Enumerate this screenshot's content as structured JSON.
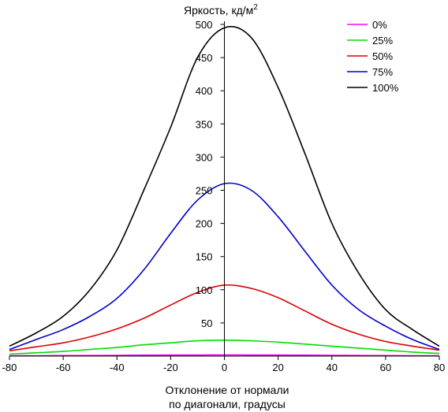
{
  "chart_data": {
    "type": "line",
    "title": "",
    "ylabel": "Яркость, кд/м",
    "ylabel_sup": "2",
    "xlabel_line1": "Отклонение от нормали",
    "xlabel_line2": "по диагонали, градусы",
    "xlim": [
      -80,
      80
    ],
    "ylim": [
      0,
      500
    ],
    "x_ticks": [
      -80,
      -60,
      -40,
      -20,
      0,
      20,
      40,
      60,
      80
    ],
    "y_ticks": [
      50,
      100,
      150,
      200,
      250,
      300,
      350,
      400,
      450,
      500
    ],
    "grid": false,
    "legend_position": "top-right",
    "x": [
      -80,
      -70,
      -60,
      -50,
      -40,
      -30,
      -20,
      -10,
      0,
      10,
      20,
      30,
      40,
      50,
      60,
      70,
      80
    ],
    "series": [
      {
        "name": "0%",
        "color": "#ff00ff",
        "values": [
          0.5,
          0.6,
          0.8,
          1,
          1.2,
          1.4,
          1.5,
          1.6,
          1.7,
          1.6,
          1.5,
          1.4,
          1.2,
          1,
          0.8,
          0.6,
          0.5
        ]
      },
      {
        "name": "25%",
        "color": "#00dd00",
        "values": [
          3,
          5,
          7,
          10,
          13,
          17,
          20,
          23,
          24,
          23,
          21,
          18,
          15,
          12,
          9,
          6,
          4
        ]
      },
      {
        "name": "50%",
        "color": "#dd0000",
        "values": [
          8,
          14,
          20,
          29,
          41,
          57,
          77,
          96,
          107,
          102,
          88,
          68,
          48,
          33,
          22,
          15,
          9
        ]
      },
      {
        "name": "75%",
        "color": "#0000cc",
        "values": [
          10,
          25,
          40,
          60,
          87,
          130,
          185,
          235,
          260,
          250,
          210,
          158,
          107,
          70,
          45,
          25,
          10
        ]
      },
      {
        "name": "100%",
        "color": "#000000",
        "values": [
          15,
          35,
          60,
          100,
          160,
          250,
          345,
          450,
          495,
          480,
          405,
          305,
          200,
          125,
          70,
          40,
          15
        ]
      }
    ]
  }
}
